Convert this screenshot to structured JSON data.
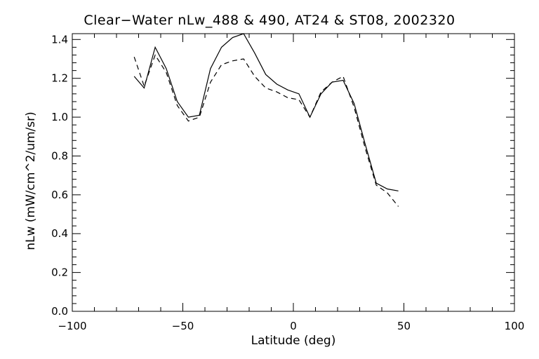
{
  "chart_data": {
    "type": "line",
    "title": "Clear−Water nLw_488 & 490, AT24 & ST08, 2002320",
    "xlabel": "Latitude (deg)",
    "ylabel": "nLw (mW/cm^2/um/sr)",
    "xlim": [
      -100,
      100
    ],
    "ylim": [
      0.0,
      1.43
    ],
    "xticks": [
      -100,
      -50,
      0,
      50,
      100
    ],
    "xtick_labels": [
      "−100",
      "−50",
      "0",
      "50",
      "100"
    ],
    "yticks": [
      0.0,
      0.2,
      0.4,
      0.6,
      0.8,
      1.0,
      1.2,
      1.4
    ],
    "ytick_labels": [
      "0.0",
      "0.2",
      "0.4",
      "0.6",
      "0.8",
      "1.0",
      "1.2",
      "1.4"
    ],
    "grid": false,
    "series": [
      {
        "style": "solid",
        "color": "#000000",
        "x": [
          -72,
          -67.5,
          -62.5,
          -57.5,
          -52.5,
          -47.5,
          -42.5,
          -37.5,
          -32.5,
          -27.5,
          -22.5,
          -17.5,
          -12.5,
          -7.5,
          -2.5,
          2.5,
          7.5,
          12.5,
          17.5,
          22.5,
          27.5,
          32.5,
          37.5,
          42.5,
          47.5
        ],
        "y": [
          1.21,
          1.15,
          1.36,
          1.25,
          1.08,
          1.0,
          1.01,
          1.25,
          1.36,
          1.41,
          1.43,
          1.33,
          1.22,
          1.17,
          1.14,
          1.12,
          1.0,
          1.12,
          1.18,
          1.19,
          1.07,
          0.86,
          0.66,
          0.63,
          0.62
        ]
      },
      {
        "style": "dashed",
        "color": "#000000",
        "x": [
          -72,
          -67.5,
          -62.5,
          -57.5,
          -52.5,
          -47.5,
          -42.5,
          -37.5,
          -32.5,
          -27.5,
          -22.5,
          -17.5,
          -12.5,
          -7.5,
          -2.5,
          2.5,
          7.5,
          12.5,
          17.5,
          22.5,
          27.5,
          32.5,
          37.5,
          42.5,
          47.5
        ],
        "y": [
          1.31,
          1.16,
          1.32,
          1.23,
          1.06,
          0.98,
          1.0,
          1.18,
          1.27,
          1.29,
          1.3,
          1.21,
          1.15,
          1.13,
          1.1,
          1.09,
          1.0,
          1.13,
          1.18,
          1.21,
          1.05,
          0.84,
          0.65,
          0.61,
          0.54
        ]
      }
    ]
  }
}
